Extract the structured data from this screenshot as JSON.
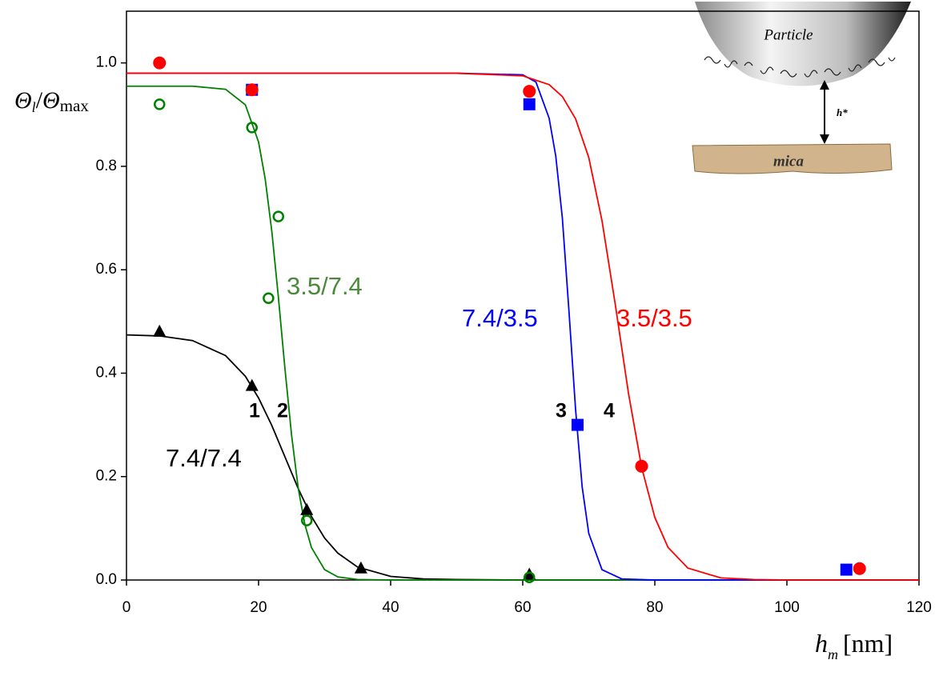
{
  "chart_data": {
    "type": "scatter",
    "xlim": [
      0,
      120
    ],
    "ylim": [
      0,
      1.1
    ],
    "xticks": [
      0,
      20,
      40,
      60,
      80,
      100,
      120
    ],
    "yticks": [
      {
        "value": 0,
        "label": "0.0"
      },
      {
        "value": 0.2,
        "label": "0.2"
      },
      {
        "value": 0.4,
        "label": "0.4"
      },
      {
        "value": 0.6,
        "label": "0.6"
      },
      {
        "value": 0.8,
        "label": "0.8"
      },
      {
        "value": 1.0,
        "label": "1.0"
      }
    ],
    "ylabel": {
      "symbol": "Θ",
      "sub": "l",
      "sep": "/",
      "symbol2": "Θ",
      "sub2": "max"
    },
    "xlabel": {
      "symbol": "h",
      "sub": "m",
      "unit": "[nm]"
    },
    "series": [
      {
        "color": "#000000",
        "marker": "triangle",
        "x": [
          5,
          19,
          27.3,
          35.5,
          61
        ],
        "values": [
          0.48,
          0.375,
          0.135,
          0.022,
          0.01
        ],
        "fit_x": [
          0,
          5,
          10,
          15,
          18,
          20,
          22,
          24,
          26,
          28,
          30,
          32,
          35,
          40,
          45,
          50,
          60,
          120
        ],
        "fit_values": [
          0.474,
          0.472,
          0.463,
          0.434,
          0.394,
          0.352,
          0.299,
          0.238,
          0.177,
          0.123,
          0.081,
          0.052,
          0.025,
          0.007,
          0.002,
          0.001,
          0,
          0
        ]
      },
      {
        "color": "#008000",
        "marker": "open-circle",
        "x": [
          5,
          19,
          23,
          21.5,
          27.3,
          61
        ],
        "values": [
          0.92,
          0.875,
          0.703,
          0.545,
          0.115,
          0.005
        ],
        "fit_x": [
          0,
          10,
          15,
          18,
          20,
          21,
          22,
          23,
          24,
          25,
          26,
          27,
          28,
          30,
          32,
          35,
          40,
          120
        ],
        "fit_values": [
          0.955,
          0.955,
          0.949,
          0.919,
          0.847,
          0.776,
          0.675,
          0.547,
          0.408,
          0.28,
          0.178,
          0.108,
          0.063,
          0.02,
          0.006,
          0.001,
          0,
          0
        ]
      },
      {
        "color": "#0000ff",
        "marker": "square",
        "x": [
          19,
          61,
          68.3,
          109
        ],
        "values": [
          0.948,
          0.92,
          0.3,
          0.02
        ],
        "fit_x": [
          0,
          50,
          60,
          62,
          64,
          65,
          66,
          67,
          68,
          69,
          70,
          72,
          75,
          80,
          120
        ],
        "fit_values": [
          0.98,
          0.98,
          0.977,
          0.963,
          0.893,
          0.82,
          0.7,
          0.52,
          0.33,
          0.18,
          0.09,
          0.02,
          0.002,
          0,
          0
        ]
      },
      {
        "color": "#ff0000",
        "marker": "circle",
        "x": [
          5,
          19,
          61,
          78,
          111
        ],
        "values": [
          1.0,
          0.948,
          0.945,
          0.22,
          0.022
        ],
        "fit_x": [
          0,
          50,
          60,
          64,
          66,
          68,
          70,
          72,
          74,
          76,
          78,
          80,
          82,
          85,
          90,
          95,
          100,
          120
        ],
        "fit_values": [
          0.98,
          0.98,
          0.975,
          0.958,
          0.935,
          0.892,
          0.817,
          0.695,
          0.534,
          0.362,
          0.218,
          0.121,
          0.063,
          0.023,
          0.004,
          0.001,
          0,
          0
        ]
      }
    ],
    "annotations": [
      "3.5/7.4",
      "7.4/3.5",
      "3.5/3.5",
      "7.4/7.4",
      "1",
      "2",
      "3",
      "4"
    ],
    "inset": {
      "particle": "Particle",
      "gap": "h*",
      "surface": "mica"
    }
  }
}
